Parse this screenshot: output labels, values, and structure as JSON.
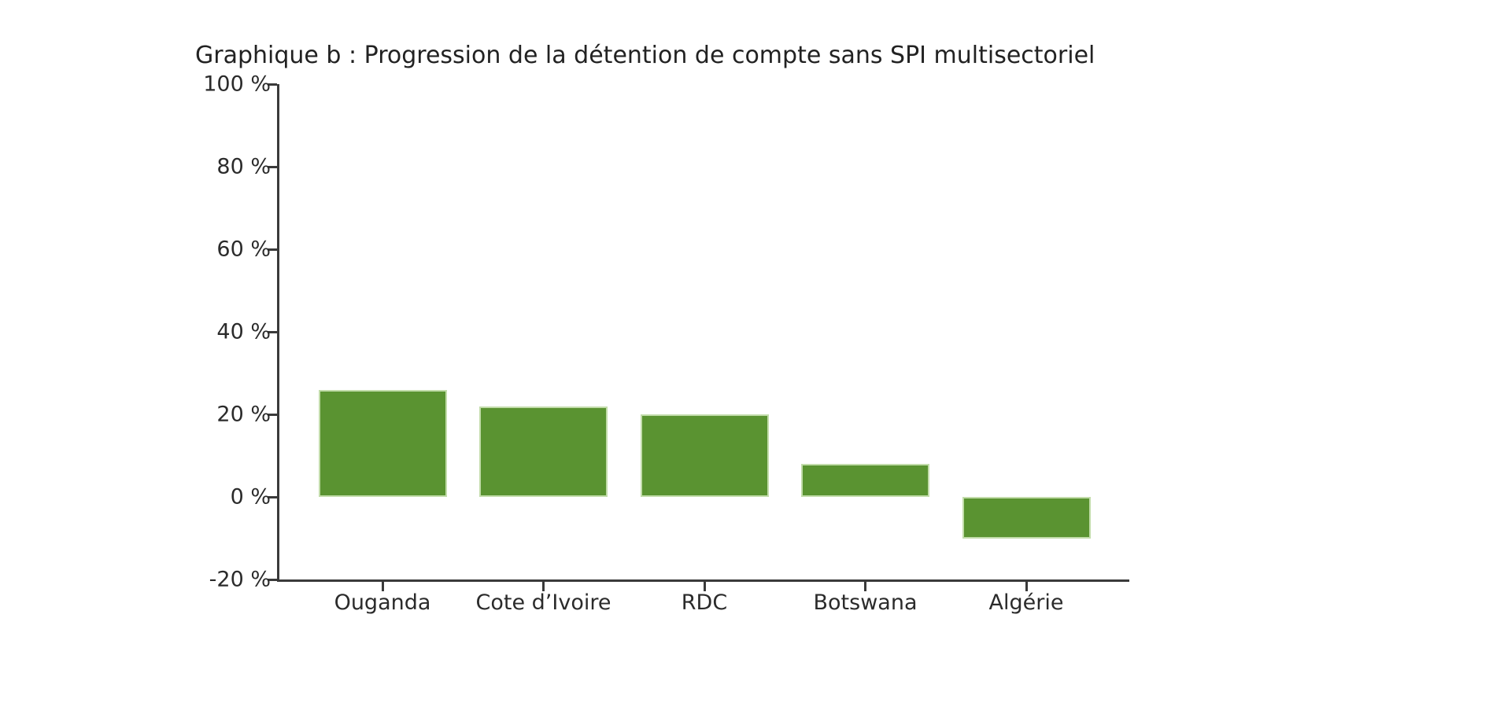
{
  "chart_data": {
    "type": "bar",
    "title": "Graphique b : Progression de la détention de compte sans SPI multisectoriel",
    "categories": [
      "Ouganda",
      "Cote d’Ivoire",
      "RDC",
      "Botswana",
      "Algérie"
    ],
    "values": [
      26,
      22,
      20,
      8,
      -10
    ],
    "xlabel": "",
    "ylabel": "",
    "ylim": [
      -20,
      100
    ],
    "ytick_step": 20,
    "ytick_labels": [
      "100 %",
      "80 %",
      "60 %",
      "40 %",
      "20 %",
      "0 %",
      "-20 %"
    ],
    "grid": false,
    "legend": null,
    "bar_color": "#5a9331",
    "bar_edge_color": "#c2dcaa",
    "axis_color": "#3a3a3a",
    "text_color": "#262626",
    "background_color": "#ffffff"
  }
}
